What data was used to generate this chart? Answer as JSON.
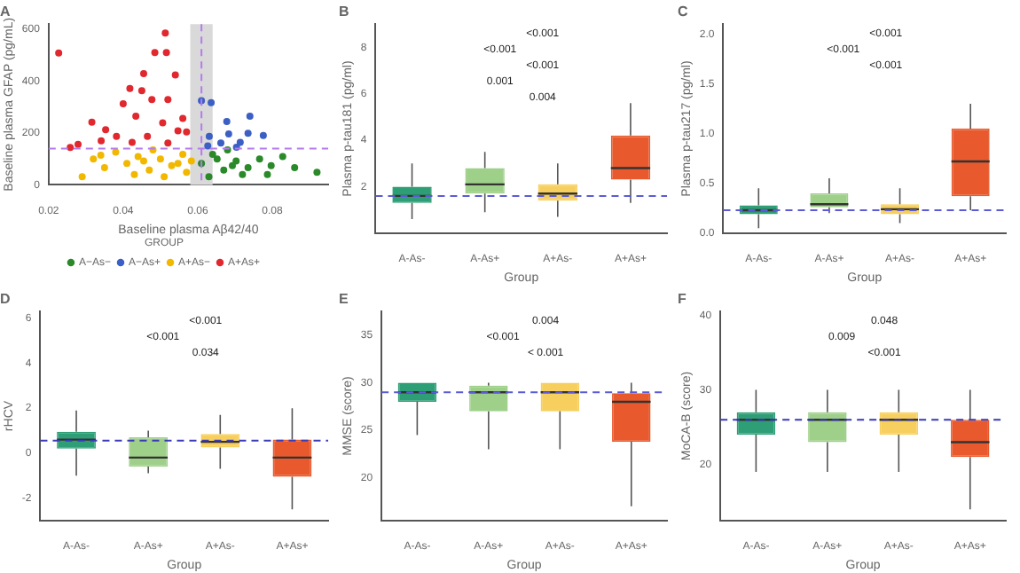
{
  "chart_data": [
    {
      "type": "scatter",
      "title": "A",
      "xlabel": "Baseline plasma Aβ42/40",
      "ylabel": "Baseline plasma GFAP (pg/mL)",
      "legend": "bottom",
      "legend_title": "GROUP",
      "marker": "circle",
      "xlim": [
        0.02,
        0.095
      ],
      "xticks": [
        {
          "value": 0.02,
          "label": "0.02"
        },
        {
          "value": 0.04,
          "label": "0.04"
        },
        {
          "value": 0.06,
          "label": "0.06"
        },
        {
          "value": 0.08,
          "label": "0.08"
        }
      ],
      "ylim": [
        0,
        620
      ],
      "yticks": [
        0,
        200,
        400,
        600
      ],
      "ref_lines": [
        {
          "axis": "x",
          "value": 0.061,
          "color": "#b57bee",
          "line_style": "dashed"
        },
        {
          "axis": "y",
          "value": 140,
          "color": "#b57bee",
          "line_style": "dashed"
        }
      ],
      "bands": [
        {
          "axis": "x",
          "from": 0.058,
          "to": 0.064,
          "color": "#d9d9d9"
        }
      ],
      "series": [
        {
          "name": "A−As−",
          "color": "#2a8a2a",
          "x": [
            0.061,
            0.064,
            0.067,
            0.0703,
            0.0735,
            0.0766,
            0.0797,
            0.0828,
            0.086,
            0.092,
            0.063,
            0.068,
            0.072,
            0.0787,
            0.0652,
            0.0693
          ],
          "values": [
            83,
            118,
            57,
            92,
            66,
            100,
            74,
            109,
            66,
            48,
            31,
            135,
            40,
            40,
            100,
            74
          ]
        },
        {
          "name": "A−As+",
          "color": "#3b5fc4",
          "x": [
            0.061,
            0.0636,
            0.0678,
            0.074,
            0.0683,
            0.0735,
            0.0776,
            0.0631,
            0.0662,
            0.0714,
            0.0704,
            0.0627
          ],
          "values": [
            325,
            317,
            244,
            265,
            196,
            199,
            190,
            187,
            161,
            164,
            145,
            150
          ]
        },
        {
          "name": "A+As−",
          "color": "#f2b800",
          "x": [
            0.029,
            0.035,
            0.032,
            0.038,
            0.041,
            0.044,
            0.047,
            0.05,
            0.053,
            0.056,
            0.057,
            0.043,
            0.048,
            0.034,
            0.051,
            0.0455,
            0.0547,
            0.0583
          ],
          "values": [
            31,
            66,
            100,
            126,
            83,
            109,
            57,
            100,
            74,
            118,
            48,
            40,
            135,
            114,
            31,
            92,
            83,
            92
          ]
        },
        {
          "name": "A+As+",
          "color": "#e0282e",
          "x": [
            0.0227,
            0.0513,
            0.0485,
            0.0516,
            0.0455,
            0.054,
            0.0418,
            0.045,
            0.04,
            0.0477,
            0.052,
            0.0316,
            0.0353,
            0.0434,
            0.0506,
            0.0382,
            0.0465,
            0.0547,
            0.0279,
            0.0341,
            0.0424,
            0.052,
            0.057,
            0.0258,
            0.056
          ],
          "values": [
            509,
            586,
            510,
            510,
            429,
            424,
            372,
            363,
            313,
            329,
            329,
            242,
            213,
            265,
            239,
            187,
            187,
            208,
            156,
            170,
            164,
            161,
            204,
            144,
            256
          ]
        }
      ]
    },
    {
      "type": "box",
      "title": "B",
      "xlabel": "Group",
      "ylabel": "Plasma p-tau181 (pg/ml)",
      "categories": [
        "A-As-",
        "A-As+",
        "A+As-",
        "A+As+"
      ],
      "colors": [
        "#2e9e76",
        "#9fd08a",
        "#f7cf5e",
        "#e85a2e"
      ],
      "ylim": [
        0,
        9
      ],
      "yticks": [
        2,
        4,
        6,
        8
      ],
      "boxes": [
        {
          "low": 0.6,
          "q1": 1.3,
          "median": 1.6,
          "q3": 2.0,
          "high": 3.0
        },
        {
          "low": 0.9,
          "q1": 1.7,
          "median": 2.1,
          "q3": 2.8,
          "high": 3.5
        },
        {
          "low": 0.7,
          "q1": 1.4,
          "median": 1.7,
          "q3": 2.1,
          "high": 3.0
        },
        {
          "low": 1.3,
          "q1": 2.3,
          "median": 2.8,
          "q3": 4.2,
          "high": 5.6
        }
      ],
      "ref_lines": [
        {
          "axis": "y",
          "value": 1.6,
          "color": "#5b5bd6",
          "line_style": "dashed"
        }
      ],
      "annotations": [
        "<0.001",
        "<0.001",
        "<0.001",
        "0.001",
        "0.004"
      ]
    },
    {
      "type": "box",
      "title": "C",
      "xlabel": "Group",
      "ylabel": "Plasma p-tau217 (pg/ml)",
      "categories": [
        "A-As-",
        "A-As+",
        "A+As-",
        "A+As+"
      ],
      "colors": [
        "#2e9e76",
        "#9fd08a",
        "#f7cf5e",
        "#e85a2e"
      ],
      "ylim": [
        0,
        2.1
      ],
      "yticks": [
        {
          "value": 0,
          "label": "0.0"
        },
        {
          "value": 0.5,
          "label": "0.5"
        },
        {
          "value": 1,
          "label": "1.0"
        },
        {
          "value": 1.5,
          "label": "1.5"
        },
        {
          "value": 2,
          "label": "2.0"
        }
      ],
      "boxes": [
        {
          "low": 0.05,
          "q1": 0.19,
          "median": 0.23,
          "q3": 0.28,
          "high": 0.45
        },
        {
          "low": 0.2,
          "q1": 0.26,
          "median": 0.29,
          "q3": 0.4,
          "high": 0.55
        },
        {
          "low": 0.1,
          "q1": 0.19,
          "median": 0.24,
          "q3": 0.29,
          "high": 0.45
        },
        {
          "low": 0.23,
          "q1": 0.37,
          "median": 0.72,
          "q3": 1.05,
          "high": 1.3
        }
      ],
      "ref_lines": [
        {
          "axis": "y",
          "value": 0.23,
          "color": "#5b5bd6",
          "line_style": "dashed"
        }
      ],
      "annotations": [
        "<0.001",
        "<0.001",
        "<0.001"
      ]
    },
    {
      "type": "box",
      "title": "D",
      "xlabel": "Group",
      "ylabel": "rHCV",
      "categories": [
        "A-As-",
        "A-As+",
        "A+As-",
        "A+As+"
      ],
      "colors": [
        "#2e9e76",
        "#9fd08a",
        "#f7cf5e",
        "#e85a2e"
      ],
      "ylim": [
        -3,
        6.3
      ],
      "yticks": [
        -2,
        0,
        2,
        4,
        6
      ],
      "boxes": [
        {
          "low": -1.0,
          "q1": 0.2,
          "median": 0.6,
          "q3": 0.95,
          "high": 1.9
        },
        {
          "low": -0.9,
          "q1": -0.6,
          "median": -0.2,
          "q3": 0.7,
          "high": 1.0
        },
        {
          "low": -0.7,
          "q1": 0.25,
          "median": 0.5,
          "q3": 0.85,
          "high": 1.7
        },
        {
          "low": -2.5,
          "q1": -1.05,
          "median": -0.2,
          "q3": 0.6,
          "high": 2.0
        }
      ],
      "ref_lines": [
        {
          "axis": "y",
          "value": 0.55,
          "color": "#3a3ab8",
          "line_style": "dashed"
        }
      ],
      "annotations": [
        "<0.001",
        "<0.001",
        "0.034"
      ]
    },
    {
      "type": "box",
      "title": "E",
      "xlabel": "Group",
      "ylabel": "MMSE (score)",
      "categories": [
        "A-As-",
        "A-As+",
        "A+As-",
        "A+As+"
      ],
      "colors": [
        "#2e9e76",
        "#9fd08a",
        "#f7cf5e",
        "#e85a2e"
      ],
      "ylim": [
        15.5,
        37.5
      ],
      "yticks": [
        20,
        25,
        30,
        35
      ],
      "boxes": [
        {
          "low": 24.5,
          "q1": 28,
          "median": 29,
          "q3": 30,
          "high": 30
        },
        {
          "low": 23,
          "q1": 27,
          "median": 29,
          "q3": 29.7,
          "high": 30
        },
        {
          "low": 23,
          "q1": 27,
          "median": 29,
          "q3": 30,
          "high": 30
        },
        {
          "low": 17,
          "q1": 23.8,
          "median": 28,
          "q3": 28.9,
          "high": 30
        }
      ],
      "ref_lines": [
        {
          "axis": "y",
          "value": 29,
          "color": "#5b5bd6",
          "line_style": "dashed"
        }
      ],
      "annotations": [
        "0.004",
        "<0.001",
        "< 0.001"
      ]
    },
    {
      "type": "box",
      "title": "F",
      "xlabel": "Group",
      "ylabel": "MoCA-B (score)",
      "categories": [
        "A-As-",
        "A-As+",
        "A+As-",
        "A+As+"
      ],
      "colors": [
        "#2e9e76",
        "#9fd08a",
        "#f7cf5e",
        "#e85a2e"
      ],
      "ylim": [
        12.5,
        40.5
      ],
      "yticks": [
        20,
        30,
        40
      ],
      "boxes": [
        {
          "low": 19,
          "q1": 24,
          "median": 26,
          "q3": 27,
          "high": 30
        },
        {
          "low": 19,
          "q1": 23,
          "median": 26,
          "q3": 27,
          "high": 30
        },
        {
          "low": 19,
          "q1": 24,
          "median": 26,
          "q3": 27,
          "high": 30
        },
        {
          "low": 14,
          "q1": 21,
          "median": 23,
          "q3": 26,
          "high": 30
        }
      ],
      "ref_lines": [
        {
          "axis": "y",
          "value": 26,
          "color": "#3a3ab8",
          "line_style": "dashed"
        }
      ],
      "annotations": [
        "0.048",
        "0.009",
        "<0.001"
      ]
    }
  ]
}
